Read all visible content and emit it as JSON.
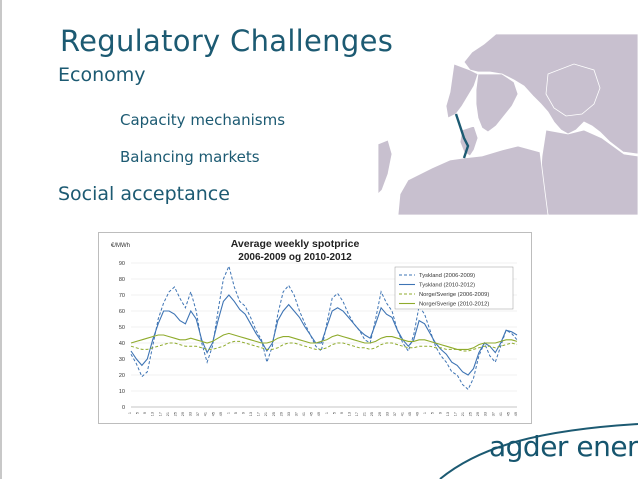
{
  "slide": {
    "title": "Regulatory Challenges",
    "section_economy": "Economy",
    "item_capacity": "Capacity mechanisms",
    "item_balancing": "Balancing markets",
    "section_social": "Social acceptance"
  },
  "logo": {
    "text": "agder energi"
  },
  "colors": {
    "title": "#1c5a72",
    "land": "#c8c0cf",
    "sea": "#ffffff",
    "cable": "#1c5a72",
    "tyskland": "#3e74b4",
    "norge": "#8fab2c"
  },
  "chart_data": {
    "type": "line",
    "title": "Average weekly spotprice",
    "subtitle": "2006-2009 og 2010-2012",
    "ylabel": "€/MWh",
    "xlabel": "",
    "ylim": [
      0,
      90
    ],
    "yticks": [
      0,
      10,
      20,
      30,
      40,
      50,
      60,
      70,
      80,
      90
    ],
    "xticks": [
      "1",
      "3",
      "5",
      "7",
      "9",
      "11",
      "13",
      "15",
      "17",
      "19",
      "21",
      "23",
      "25",
      "27",
      "29",
      "31",
      "33",
      "35",
      "37",
      "39",
      "41",
      "43",
      "45",
      "47",
      "49",
      "51",
      "1",
      "3",
      "5",
      "7",
      "9",
      "11",
      "13",
      "15",
      "17",
      "19",
      "21",
      "23",
      "25",
      "27",
      "29",
      "31",
      "33",
      "35",
      "37",
      "39",
      "41",
      "43",
      "45",
      "47",
      "49",
      "51",
      "1",
      "3",
      "5",
      "7",
      "9",
      "11",
      "13",
      "15",
      "17",
      "19",
      "21",
      "23",
      "25",
      "27",
      "29",
      "31",
      "33",
      "35",
      "37",
      "39",
      "41",
      "43",
      "45",
      "47",
      "49",
      "51",
      "1",
      "3",
      "5",
      "7",
      "9",
      "11",
      "13",
      "15",
      "17",
      "19",
      "21",
      "23",
      "25",
      "27",
      "29",
      "31",
      "33",
      "35",
      "37",
      "39",
      "41",
      "43",
      "45",
      "47",
      "49",
      "51",
      "1",
      "3",
      "5",
      "7",
      "9",
      "11",
      "13",
      "15",
      "17",
      "19",
      "21",
      "23",
      "25",
      "27",
      "29",
      "31",
      "33",
      "35",
      "37",
      "39",
      "41",
      "43",
      "45",
      "47",
      "49",
      "51",
      "1",
      "3",
      "5",
      "7",
      "9",
      "11",
      "13",
      "15",
      "17",
      "19",
      "21",
      "23",
      "25",
      "27",
      "29",
      "31",
      "33",
      "35",
      "37",
      "39",
      "41",
      "43",
      "45",
      "47",
      "49",
      "51",
      "1",
      "3",
      "5",
      "7",
      "9",
      "11",
      "13",
      "15",
      "17",
      "19",
      "21",
      "23",
      "25",
      "27",
      "29",
      "31",
      "33",
      "35",
      "37",
      "39",
      "41",
      "43",
      "45",
      "47",
      "49",
      "51"
    ],
    "legend_position": "top-right",
    "series": [
      {
        "name": "Tyskland (2006-2009)",
        "style": "dashed",
        "color": "#3e74b4",
        "values": [
          33,
          27,
          19,
          22,
          38,
          55,
          65,
          72,
          75,
          68,
          62,
          72,
          60,
          40,
          28,
          38,
          60,
          80,
          88,
          75,
          66,
          63,
          56,
          48,
          42,
          28,
          38,
          58,
          72,
          76,
          70,
          60,
          52,
          45,
          38,
          35,
          52,
          68,
          71,
          66,
          58,
          52,
          48,
          42,
          40,
          55,
          72,
          65,
          60,
          48,
          40,
          35,
          45,
          63,
          58,
          48,
          38,
          32,
          28,
          22,
          20,
          14,
          11,
          18,
          32,
          40,
          32,
          28,
          38,
          48,
          46,
          42
        ]
      },
      {
        "name": "Tyskland (2010-2012)",
        "style": "solid",
        "color": "#3e74b4",
        "values": [
          35,
          30,
          26,
          30,
          42,
          52,
          60,
          60,
          58,
          54,
          52,
          60,
          55,
          42,
          34,
          40,
          54,
          66,
          70,
          66,
          61,
          58,
          52,
          46,
          41,
          35,
          40,
          54,
          60,
          64,
          60,
          56,
          50,
          45,
          40,
          40,
          50,
          60,
          62,
          60,
          56,
          52,
          48,
          45,
          43,
          52,
          62,
          58,
          56,
          48,
          42,
          38,
          42,
          54,
          52,
          46,
          40,
          36,
          33,
          28,
          26,
          22,
          20,
          24,
          34,
          40,
          38,
          34,
          40,
          48,
          47,
          45
        ]
      },
      {
        "name": "Norge/Sverige (2006-2009)",
        "style": "dashed",
        "color": "#8fab2c",
        "values": [
          38,
          37,
          36,
          36,
          37,
          38,
          39,
          40,
          40,
          39,
          38,
          38,
          38,
          37,
          36,
          36,
          37,
          38,
          40,
          41,
          41,
          40,
          39,
          38,
          37,
          36,
          36,
          37,
          39,
          40,
          40,
          39,
          38,
          37,
          36,
          36,
          37,
          39,
          40,
          40,
          39,
          38,
          37,
          37,
          36,
          37,
          39,
          40,
          40,
          39,
          38,
          37,
          37,
          38,
          38,
          38,
          37,
          37,
          36,
          36,
          36,
          35,
          35,
          36,
          37,
          38,
          38,
          37,
          38,
          39,
          40,
          39
        ]
      },
      {
        "name": "Norge/Sverige (2010-2012)",
        "style": "solid",
        "color": "#8fab2c",
        "values": [
          40,
          41,
          42,
          43,
          44,
          45,
          45,
          44,
          43,
          42,
          42,
          43,
          42,
          41,
          40,
          41,
          43,
          45,
          46,
          45,
          44,
          43,
          42,
          41,
          40,
          40,
          41,
          43,
          44,
          44,
          43,
          42,
          41,
          40,
          40,
          41,
          42,
          44,
          45,
          44,
          43,
          42,
          41,
          40,
          40,
          41,
          43,
          44,
          44,
          43,
          42,
          41,
          41,
          42,
          42,
          41,
          40,
          39,
          38,
          37,
          36,
          36,
          36,
          37,
          39,
          40,
          40,
          40,
          41,
          42,
          42,
          41
        ]
      }
    ]
  }
}
